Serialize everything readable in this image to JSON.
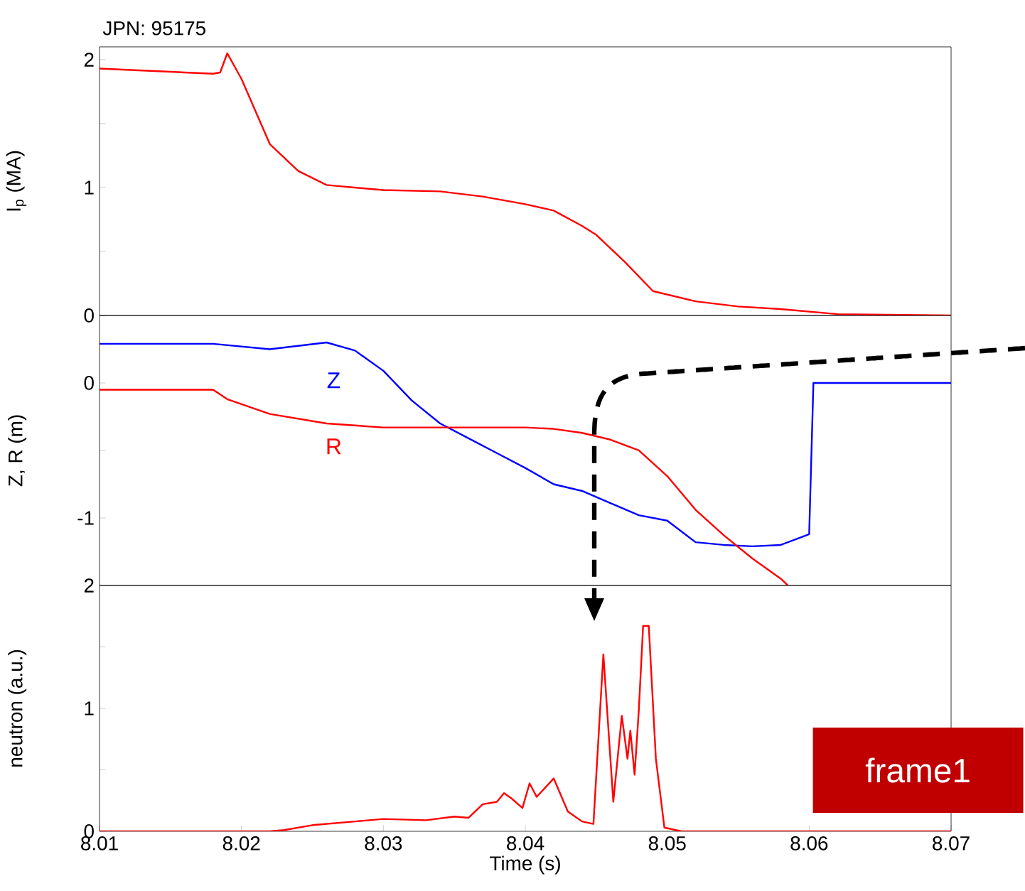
{
  "chart_data": [
    {
      "type": "line",
      "title": "JPN: 95175",
      "ylabel": "I$_{p}$ (MA)",
      "xlim": [
        8.01,
        8.07
      ],
      "ylim": [
        0,
        2.1
      ],
      "yticks": [
        0,
        {
          "value": 0.5,
          "label": null
        },
        1,
        {
          "value": 1.5,
          "label": null
        },
        2
      ],
      "tick_labels": "y",
      "grid": false,
      "x": [
        8.01,
        8.018,
        8.0185,
        8.019,
        8.02,
        8.022,
        8.024,
        8.026,
        8.03,
        8.034,
        8.037,
        8.04,
        8.042,
        8.044,
        8.045,
        8.047,
        8.049,
        8.052,
        8.055,
        8.058,
        8.062,
        8.07
      ],
      "series": [
        {
          "color": "#ff0000",
          "values": [
            1.93,
            1.89,
            1.9,
            2.05,
            1.85,
            1.34,
            1.13,
            1.02,
            0.98,
            0.97,
            0.93,
            0.87,
            0.82,
            0.7,
            0.63,
            0.42,
            0.19,
            0.11,
            0.07,
            0.05,
            0.01,
            0.0
          ]
        }
      ]
    },
    {
      "type": "line",
      "ylabel": "Z, R (m)",
      "xlim": [
        8.01,
        8.07
      ],
      "ylim": [
        -1.5,
        0.5
      ],
      "yticks": [
        -1,
        {
          "value": -0.5,
          "label": null
        },
        0
      ],
      "tick_labels": "y",
      "grid": false,
      "series": [
        {
          "name": "Z",
          "color": "#0000ff",
          "x": [
            8.01,
            8.018,
            8.022,
            8.026,
            8.028,
            8.03,
            8.032,
            8.034,
            8.036,
            8.038,
            8.04,
            8.042,
            8.044,
            8.046,
            8.048,
            8.05,
            8.052,
            8.054,
            8.056,
            8.058,
            8.06,
            8.0603,
            8.07
          ],
          "values": [
            0.29,
            0.29,
            0.25,
            0.3,
            0.24,
            0.09,
            -0.13,
            -0.3,
            -0.41,
            -0.52,
            -0.63,
            -0.75,
            -0.8,
            -0.89,
            -0.98,
            -1.02,
            -1.18,
            -1.2,
            -1.21,
            -1.2,
            -1.12,
            0,
            0
          ]
        },
        {
          "name": "R",
          "color": "#ff0000",
          "x": [
            8.01,
            8.018,
            8.019,
            8.022,
            8.026,
            8.03,
            8.036,
            8.04,
            8.042,
            8.044,
            8.046,
            8.048,
            8.05,
            8.052,
            8.054,
            8.056,
            8.058,
            8.0585
          ],
          "values": [
            -0.05,
            -0.05,
            -0.12,
            -0.23,
            -0.3,
            -0.33,
            -0.33,
            -0.33,
            -0.34,
            -0.37,
            -0.42,
            -0.5,
            -0.69,
            -0.94,
            -1.13,
            -1.3,
            -1.45,
            -1.5
          ]
        }
      ]
    },
    {
      "type": "line",
      "xlabel": "Time (s)",
      "ylabel": "neutron (a.u.)",
      "xlim": [
        8.01,
        8.07
      ],
      "xticks": [
        8.01,
        8.02,
        8.03,
        8.04,
        8.05,
        8.06,
        8.07
      ],
      "ylim": [
        0,
        2
      ],
      "yticks": [
        0,
        {
          "value": 0.5,
          "label": null
        },
        1,
        {
          "value": 1.5,
          "label": null
        },
        2
      ],
      "grid": false,
      "annotations": [
        "frame1"
      ],
      "x": [
        8.01,
        8.022,
        8.023,
        8.025,
        8.028,
        8.03,
        8.033,
        8.035,
        8.036,
        8.037,
        8.038,
        8.0385,
        8.039,
        8.0398,
        8.0403,
        8.0408,
        8.042,
        8.043,
        8.044,
        8.0448,
        8.0455,
        8.0462,
        8.0468,
        8.0472,
        8.0474,
        8.0477,
        8.048,
        8.0483,
        8.0487,
        8.0492,
        8.0498,
        8.051,
        8.07
      ],
      "series": [
        {
          "color": "#ff0000",
          "values": [
            0,
            0,
            0.01,
            0.05,
            0.08,
            0.1,
            0.09,
            0.12,
            0.11,
            0.22,
            0.24,
            0.31,
            0.27,
            0.19,
            0.39,
            0.28,
            0.43,
            0.16,
            0.08,
            0.06,
            1.44,
            0.24,
            0.94,
            0.59,
            0.82,
            0.46,
            0.99,
            1.67,
            1.67,
            0.59,
            0.03,
            0,
            0
          ]
        }
      ]
    }
  ]
}
